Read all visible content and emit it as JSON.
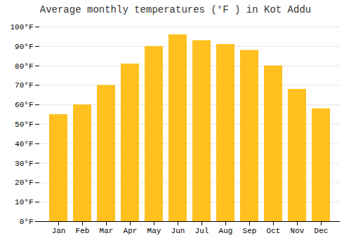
{
  "chart_data": {
    "type": "bar",
    "title": "Average monthly temperatures (°F ) in Kot Addu",
    "categories": [
      "Jan",
      "Feb",
      "Mar",
      "Apr",
      "May",
      "Jun",
      "Jul",
      "Aug",
      "Sep",
      "Oct",
      "Nov",
      "Dec"
    ],
    "values": [
      55,
      60,
      70,
      81,
      90,
      96,
      93,
      91,
      88,
      80,
      68,
      58
    ],
    "color": "#FFC020",
    "ylim": [
      0,
      100
    ],
    "yticks": [
      {
        "value": 0,
        "label": "0°F"
      },
      {
        "value": 10,
        "label": "10°F"
      },
      {
        "value": 20,
        "label": "20°F"
      },
      {
        "value": 30,
        "label": "30°F"
      },
      {
        "value": 40,
        "label": "40°F"
      },
      {
        "value": 50,
        "label": "50°F"
      },
      {
        "value": 60,
        "label": "60°F"
      },
      {
        "value": 70,
        "label": "70°F"
      },
      {
        "value": 80,
        "label": "80°F"
      },
      {
        "value": 90,
        "label": "90°F"
      },
      {
        "value": 100,
        "label": "100°F"
      }
    ],
    "grid": true
  }
}
